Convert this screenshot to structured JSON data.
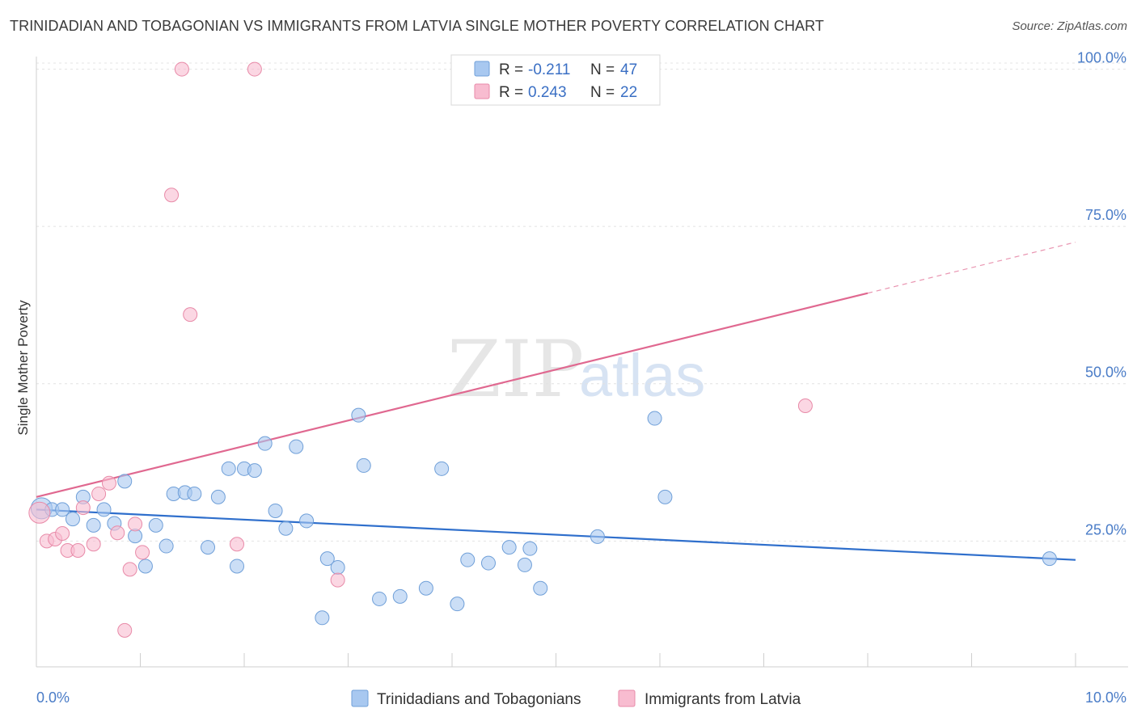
{
  "header": {
    "title": "TRINIDADIAN AND TOBAGONIAN VS IMMIGRANTS FROM LATVIA SINGLE MOTHER POVERTY CORRELATION CHART",
    "source": "Source: ZipAtlas.com"
  },
  "watermark": {
    "zip": "ZIP",
    "atlas": "atlas"
  },
  "legend": {
    "rows": [
      {
        "r_label": "R =",
        "r_value": "-0.211",
        "n_label": "N =",
        "n_value": "47"
      },
      {
        "r_label": "R =",
        "r_value": "0.243",
        "n_label": "N =",
        "n_value": "22"
      }
    ]
  },
  "chart_data": {
    "type": "scatter",
    "title": "TRINIDADIAN AND TOBAGONIAN VS IMMIGRANTS FROM LATVIA SINGLE MOTHER POVERTY CORRELATION CHART",
    "xlabel": "",
    "ylabel": "Single Mother Poverty",
    "xlim": [
      0,
      10
    ],
    "ylim": [
      5,
      102
    ],
    "x_tick_labels": [
      "0.0%",
      "10.0%"
    ],
    "y_ticks": [
      25,
      50,
      75,
      100
    ],
    "y_tick_labels": [
      "25.0%",
      "50.0%",
      "75.0%",
      "100.0%"
    ],
    "grid": true,
    "legend_placement": "top-center",
    "series": [
      {
        "name": "Trinidadians and Tobagonians",
        "color": "#a8c8f0",
        "edge_color": "#6f9fd8",
        "line_color": "#2f6fcc",
        "trend": {
          "x0": 0,
          "y0": 30.0,
          "x1": 10,
          "y1": 22.0,
          "solid_until": 10
        },
        "points": [
          [
            0.05,
            30.2
          ],
          [
            0.15,
            30.0
          ],
          [
            0.25,
            30.0
          ],
          [
            0.35,
            28.5
          ],
          [
            0.45,
            32.0
          ],
          [
            0.55,
            27.5
          ],
          [
            0.65,
            30.0
          ],
          [
            0.75,
            27.8
          ],
          [
            0.85,
            34.5
          ],
          [
            0.95,
            25.8
          ],
          [
            1.05,
            21.0
          ],
          [
            1.15,
            27.5
          ],
          [
            1.25,
            24.2
          ],
          [
            1.32,
            32.5
          ],
          [
            1.43,
            32.7
          ],
          [
            1.52,
            32.5
          ],
          [
            1.65,
            24.0
          ],
          [
            1.75,
            32.0
          ],
          [
            1.85,
            36.5
          ],
          [
            1.93,
            21.0
          ],
          [
            2.0,
            36.5
          ],
          [
            2.1,
            36.2
          ],
          [
            2.2,
            40.5
          ],
          [
            2.3,
            29.8
          ],
          [
            2.4,
            27.0
          ],
          [
            2.5,
            40.0
          ],
          [
            2.6,
            28.2
          ],
          [
            2.75,
            12.8
          ],
          [
            2.8,
            22.2
          ],
          [
            2.9,
            20.8
          ],
          [
            3.1,
            45.0
          ],
          [
            3.15,
            37.0
          ],
          [
            3.3,
            15.8
          ],
          [
            3.5,
            16.2
          ],
          [
            3.75,
            17.5
          ],
          [
            3.9,
            36.5
          ],
          [
            4.05,
            15.0
          ],
          [
            4.15,
            22.0
          ],
          [
            4.35,
            21.5
          ],
          [
            4.55,
            24.0
          ],
          [
            4.7,
            21.2
          ],
          [
            4.75,
            23.8
          ],
          [
            4.85,
            17.5
          ],
          [
            5.4,
            25.7
          ],
          [
            5.95,
            44.5
          ],
          [
            6.05,
            32.0
          ],
          [
            9.75,
            22.2
          ]
        ]
      },
      {
        "name": "Immigrants from Latvia",
        "color": "#f8bcd0",
        "edge_color": "#e88aa8",
        "line_color": "#e06890",
        "trend": {
          "x0": 0,
          "y0": 32.0,
          "x1": 10,
          "y1": 72.5,
          "solid_until": 8.0
        },
        "points": [
          [
            0.03,
            29.5
          ],
          [
            0.1,
            25.0
          ],
          [
            0.18,
            25.3
          ],
          [
            0.25,
            26.2
          ],
          [
            0.3,
            23.5
          ],
          [
            0.4,
            23.5
          ],
          [
            0.45,
            30.3
          ],
          [
            0.55,
            24.5
          ],
          [
            0.6,
            32.5
          ],
          [
            0.7,
            34.2
          ],
          [
            0.78,
            26.3
          ],
          [
            0.85,
            10.8
          ],
          [
            0.9,
            20.5
          ],
          [
            0.95,
            27.7
          ],
          [
            1.02,
            23.2
          ],
          [
            1.3,
            80.0
          ],
          [
            1.4,
            100.0
          ],
          [
            1.48,
            61.0
          ],
          [
            1.93,
            24.5
          ],
          [
            2.1,
            100.0
          ],
          [
            2.9,
            18.8
          ],
          [
            7.4,
            46.5
          ]
        ]
      }
    ]
  }
}
